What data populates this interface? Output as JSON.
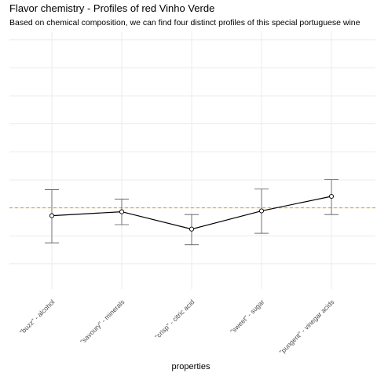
{
  "chart_data": {
    "type": "line",
    "title": "Flavor chemistry - Profiles of red Vinho Verde",
    "subtitle": "Based on chemical composition, we can find four distinct profiles of this special portuguese wine",
    "xlabel": "properties",
    "ylabel": "",
    "categories": [
      "\"buzz\" - alcohol",
      "\"savoury\" - minerals",
      "\"crisp\" - citric acid",
      "\"sweet\" - sugar",
      "\"pungent\" - vinegar acids"
    ],
    "values": [
      -0.28,
      -0.14,
      -0.76,
      -0.11,
      0.41
    ],
    "error_low": [
      -1.25,
      -0.6,
      -1.32,
      -0.91,
      -0.24
    ],
    "error_high": [
      0.65,
      0.31,
      -0.24,
      0.67,
      1.01
    ],
    "reference_line": 0,
    "ylim": [
      -2.9,
      6.3
    ],
    "grid": true,
    "legend": "none",
    "colors": {
      "line": "#000000",
      "point_fill": "#ffffff",
      "errorbar": "#555555",
      "reference": "#e69f00",
      "grid": "#ebebeb"
    }
  }
}
